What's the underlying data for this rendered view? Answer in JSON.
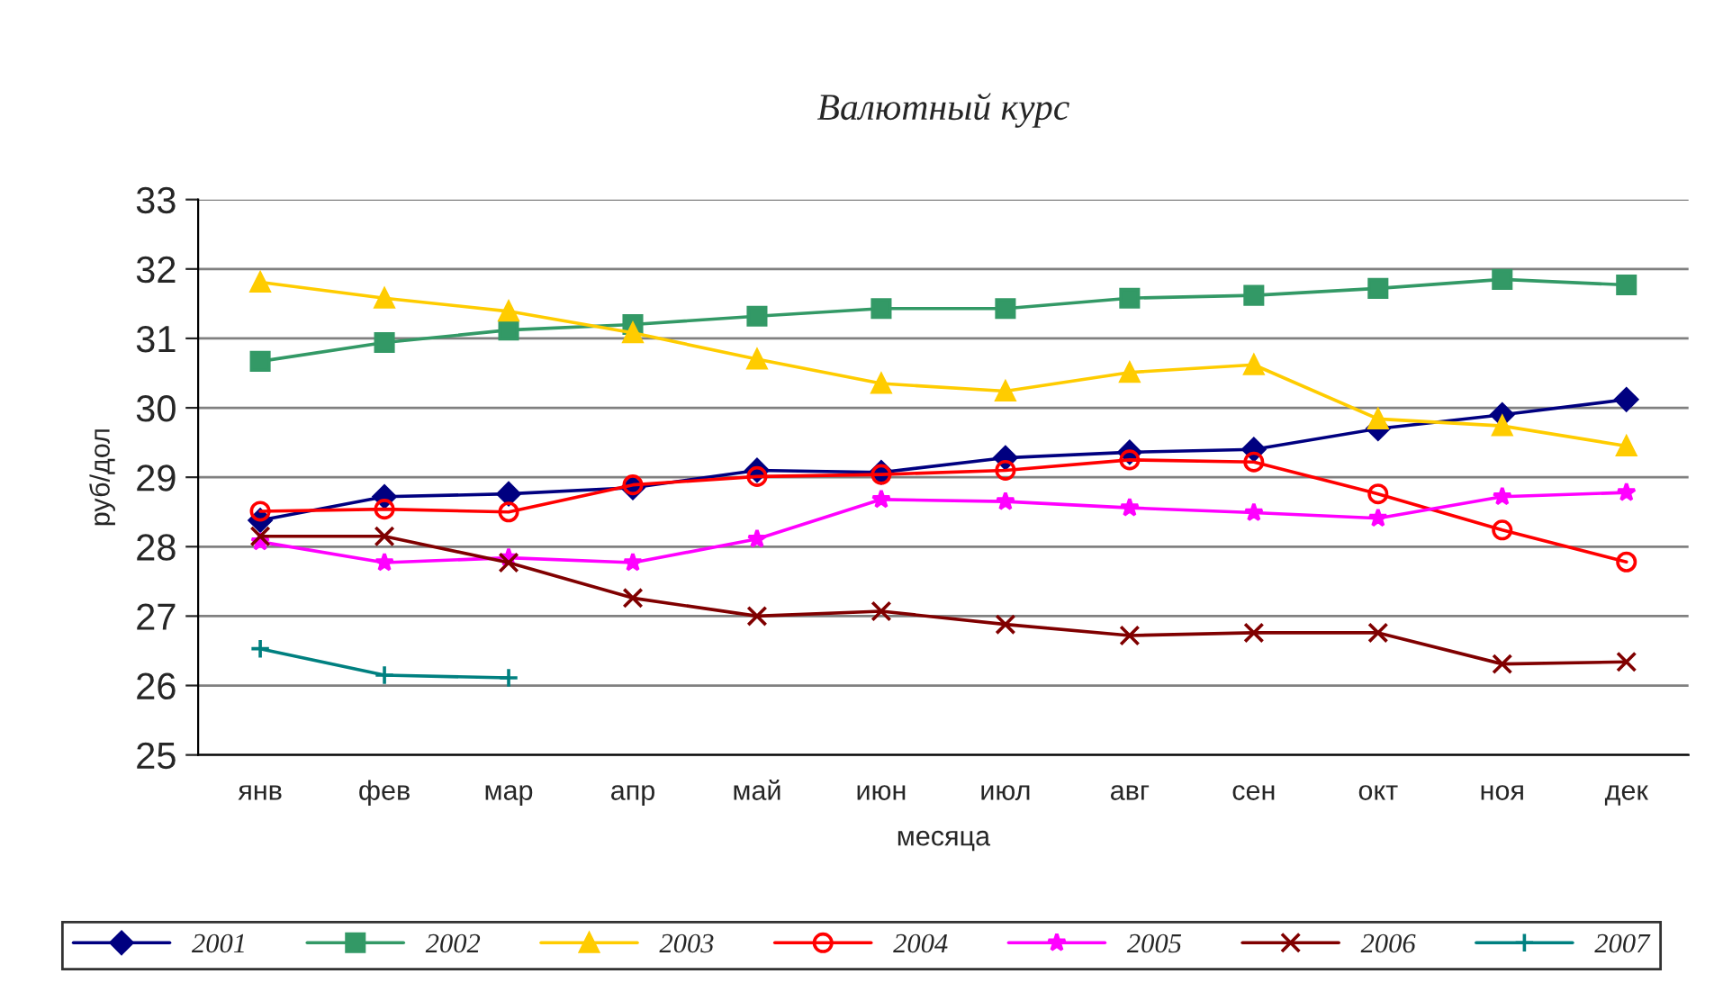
{
  "chart_data": {
    "type": "line",
    "title": "Валютный курс",
    "xlabel": "месяца",
    "ylabel": "руб/дол",
    "categories": [
      "янв",
      "фев",
      "мар",
      "апр",
      "май",
      "июн",
      "июл",
      "авг",
      "сен",
      "окт",
      "ноя",
      "дек"
    ],
    "ylim": [
      25,
      33
    ],
    "yticks": [
      25,
      26,
      27,
      28,
      29,
      30,
      31,
      32,
      33
    ],
    "grid": "y",
    "legend": "bottom",
    "series": [
      {
        "name": "2001",
        "color": "#000080",
        "marker": "diamond",
        "values": [
          28.38,
          28.72,
          28.76,
          28.85,
          29.1,
          29.07,
          29.28,
          29.36,
          29.4,
          29.7,
          29.9,
          30.12
        ]
      },
      {
        "name": "2002",
        "color": "#339966",
        "marker": "square",
        "values": [
          30.67,
          30.94,
          31.12,
          31.2,
          31.32,
          31.43,
          31.43,
          31.58,
          31.62,
          31.72,
          31.85,
          31.77
        ]
      },
      {
        "name": "2003",
        "color": "#ffcc00",
        "marker": "triangle",
        "values": [
          31.81,
          31.58,
          31.39,
          31.08,
          30.7,
          30.35,
          30.24,
          30.51,
          30.62,
          29.84,
          29.74,
          29.45
        ]
      },
      {
        "name": "2004",
        "color": "#ff0000",
        "marker": "circle",
        "values": [
          28.51,
          28.54,
          28.5,
          28.89,
          29.01,
          29.04,
          29.1,
          29.25,
          29.22,
          28.76,
          28.24,
          27.78
        ]
      },
      {
        "name": "2005",
        "color": "#ff00ff",
        "marker": "star",
        "values": [
          28.07,
          27.77,
          27.84,
          27.77,
          28.11,
          28.68,
          28.65,
          28.56,
          28.49,
          28.41,
          28.72,
          28.78
        ]
      },
      {
        "name": "2006",
        "color": "#800000",
        "marker": "cross",
        "values": [
          28.15,
          28.15,
          27.77,
          27.26,
          27.0,
          27.07,
          26.88,
          26.72,
          26.76,
          26.76,
          26.31,
          26.34
        ]
      },
      {
        "name": "2007",
        "color": "#008080",
        "marker": "plus",
        "values": [
          26.53,
          26.15,
          26.11,
          null,
          null,
          null,
          null,
          null,
          null,
          null,
          null,
          null
        ]
      }
    ]
  }
}
